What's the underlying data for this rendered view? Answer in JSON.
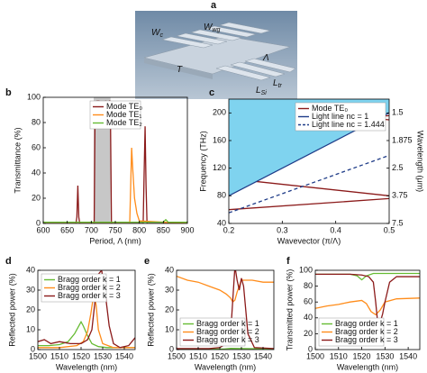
{
  "panel_a": {
    "label": "a",
    "annotations": [
      {
        "text": "W",
        "sub": "c"
      },
      {
        "text": "W",
        "sub": "wg"
      },
      {
        "text": "T",
        "sub": ""
      },
      {
        "text": "Λ",
        "sub": ""
      },
      {
        "text": "L",
        "sub": "Si"
      },
      {
        "text": "L",
        "sub": "tr"
      }
    ]
  },
  "chart_data": [
    {
      "type": "line",
      "panel_label": "b",
      "xlabel": "Period, Λ (nm)",
      "ylabel": "Transmittance (%)",
      "xlim": [
        600,
        900
      ],
      "xticks": [
        600,
        650,
        700,
        750,
        800,
        850,
        900
      ],
      "ylim": [
        0,
        100
      ],
      "yticks": [
        0,
        20,
        40,
        60,
        80,
        100
      ],
      "shaded_span": [
        705,
        740
      ],
      "legend": "upper center",
      "series": [
        {
          "name": "Mode TE₀",
          "color": "#8b1a1a",
          "x": [
            600,
            668,
            670,
            672,
            674,
            676,
            706,
            708,
            712,
            716,
            720,
            725,
            730,
            735,
            738,
            740,
            742,
            808,
            810,
            812,
            814,
            816,
            900
          ],
          "values": [
            0,
            0,
            5,
            30,
            5,
            0,
            0,
            96,
            97,
            97,
            90,
            96,
            97,
            96,
            97,
            80,
            0,
            0,
            40,
            77,
            30,
            0,
            0
          ]
        },
        {
          "name": "Mode TE₁",
          "color": "#ff8c1a",
          "x": [
            600,
            780,
            782,
            784,
            786,
            790,
            795,
            800,
            900
          ],
          "values": [
            0,
            0,
            30,
            60,
            45,
            20,
            8,
            2,
            0
          ]
        },
        {
          "name": "Mode TE₂",
          "color": "#66bb33",
          "x": [
            600,
            700,
            750,
            800,
            850,
            855,
            860,
            900
          ],
          "values": [
            1,
            1,
            1,
            1,
            1,
            3,
            1,
            1
          ]
        }
      ]
    },
    {
      "type": "line",
      "panel_label": "c",
      "xlabel": "Wavevector (π/Λ)",
      "ylabel": "Frequency (THz)",
      "y2label": "Wavelength (μm)",
      "xlim": [
        0.2,
        0.5
      ],
      "xticks": [
        0.2,
        0.3,
        0.4,
        0.5
      ],
      "ylim": [
        40,
        220
      ],
      "yticks": [
        40,
        80,
        120,
        160,
        200
      ],
      "y2scale": "reciprocal",
      "y2lim": [
        7.5,
        1.3636
      ],
      "y2ticks": [
        7.5,
        3.75,
        2.5,
        1.875,
        1.5
      ],
      "legend": "upper right",
      "series": [
        {
          "name": "Mode TE₀",
          "color": "#8b1a1a",
          "x": [
            0.2,
            0.5,
            null,
            0.2,
            0.5,
            null,
            0.2,
            0.5,
            null,
            0.2,
            0.5
          ],
          "values": [
            212,
            190,
            null,
            180,
            196,
            null,
            105,
            80,
            null,
            60,
            76
          ]
        },
        {
          "name": "Light line nc = 1",
          "color": "#1f3c88",
          "fill_above": "#7fd3ef",
          "x": [
            0.2,
            0.5
          ],
          "values": [
            80,
            200
          ]
        },
        {
          "name": "Light line nc = 1.444",
          "color": "#1f3c88",
          "dashed": true,
          "x": [
            0.2,
            0.5
          ],
          "values": [
            55.4,
            138.5
          ]
        }
      ]
    },
    {
      "type": "line",
      "panel_label": "d",
      "xlabel": "Wavelength (nm)",
      "ylabel": "Reflected power (%)",
      "xlim": [
        1500,
        1545
      ],
      "xticks": [
        1500,
        1510,
        1520,
        1530,
        1540
      ],
      "ylim": [
        0,
        40
      ],
      "yticks": [
        0,
        10,
        20,
        30,
        40
      ],
      "legend": "upper left",
      "series": [
        {
          "name": "Bragg order k = 1",
          "color": "#66bb33",
          "x": [
            1500,
            1505,
            1510,
            1514,
            1517,
            1519,
            1520,
            1521,
            1523,
            1525,
            1528,
            1532,
            1540,
            1545
          ],
          "values": [
            2,
            2,
            2.5,
            4,
            8,
            12,
            14,
            12,
            7,
            3,
            1.5,
            1,
            1,
            1
          ]
        },
        {
          "name": "Bragg order k = 2",
          "color": "#ff8c1a",
          "x": [
            1500,
            1510,
            1518,
            1521,
            1523,
            1524.5,
            1526,
            1527,
            1528,
            1530,
            1535,
            1545
          ],
          "values": [
            1,
            1,
            2,
            4,
            9,
            18,
            29,
            22,
            10,
            3,
            1,
            1
          ]
        },
        {
          "name": "Bragg order k = 3",
          "color": "#8b1a1a",
          "x": [
            1500,
            1503,
            1506,
            1510,
            1515,
            1520,
            1523,
            1525,
            1526.5,
            1528,
            1529.5,
            1531,
            1533,
            1535,
            1538,
            1542,
            1545
          ],
          "values": [
            4,
            5,
            3,
            4,
            3,
            3,
            5,
            10,
            25,
            38,
            40,
            30,
            12,
            3,
            1,
            2,
            6
          ]
        }
      ]
    },
    {
      "type": "line",
      "panel_label": "e",
      "xlabel": "Wavelength (nm)",
      "ylabel": "Reflected power (%)",
      "xlim": [
        1500,
        1545
      ],
      "xticks": [
        1500,
        1510,
        1520,
        1530,
        1540
      ],
      "ylim": [
        0,
        40
      ],
      "yticks": [
        0,
        10,
        20,
        30,
        40
      ],
      "legend": "lower left",
      "series": [
        {
          "name": "Bragg order k = 1",
          "color": "#66bb33",
          "x": [
            1500,
            1522,
            1525,
            1545
          ],
          "values": [
            0.3,
            0.3,
            0.6,
            0.3
          ]
        },
        {
          "name": "Bragg order k = 2",
          "color": "#ff8c1a",
          "x": [
            1500,
            1505,
            1510,
            1515,
            1520,
            1523,
            1525,
            1526,
            1527,
            1528,
            1530,
            1535,
            1540,
            1545
          ],
          "values": [
            37,
            35,
            34,
            32,
            30,
            28,
            26,
            24,
            25,
            29,
            35,
            35,
            34,
            34
          ]
        },
        {
          "name": "Bragg order k = 3",
          "color": "#8b1a1a",
          "x": [
            1500,
            1515,
            1520,
            1523,
            1525,
            1526,
            1527,
            1528,
            1529,
            1530,
            1531,
            1533,
            1536,
            1545
          ],
          "values": [
            0.5,
            0.5,
            1,
            3,
            8,
            25,
            42,
            35,
            30,
            36,
            32,
            8,
            1,
            0.5
          ]
        }
      ]
    },
    {
      "type": "line",
      "panel_label": "f",
      "xlabel": "Wavelength (nm)",
      "ylabel": "Transmitted power (%)",
      "xlim": [
        1500,
        1545
      ],
      "xticks": [
        1500,
        1510,
        1520,
        1530,
        1540
      ],
      "ylim": [
        0,
        100
      ],
      "yticks": [
        0,
        20,
        40,
        60,
        80,
        100
      ],
      "legend": "lower left",
      "series": [
        {
          "name": "Bragg order k = 1",
          "color": "#66bb33",
          "x": [
            1500,
            1515,
            1518,
            1520,
            1522,
            1525,
            1545
          ],
          "values": [
            95,
            95,
            93,
            88,
            93,
            96,
            96
          ]
        },
        {
          "name": "Bragg order k = 2",
          "color": "#ff8c1a",
          "x": [
            1500,
            1505,
            1510,
            1515,
            1520,
            1522,
            1524,
            1526,
            1528,
            1530,
            1535,
            1545
          ],
          "values": [
            52,
            55,
            57,
            60,
            62,
            58,
            48,
            44,
            50,
            60,
            64,
            65
          ]
        },
        {
          "name": "Bragg order k = 3",
          "color": "#8b1a1a",
          "x": [
            1500,
            1515,
            1520,
            1523,
            1525,
            1526,
            1527,
            1528,
            1529,
            1530,
            1532,
            1535,
            1545
          ],
          "values": [
            95,
            95,
            94,
            92,
            85,
            60,
            30,
            35,
            45,
            60,
            85,
            92,
            92
          ]
        }
      ]
    }
  ]
}
